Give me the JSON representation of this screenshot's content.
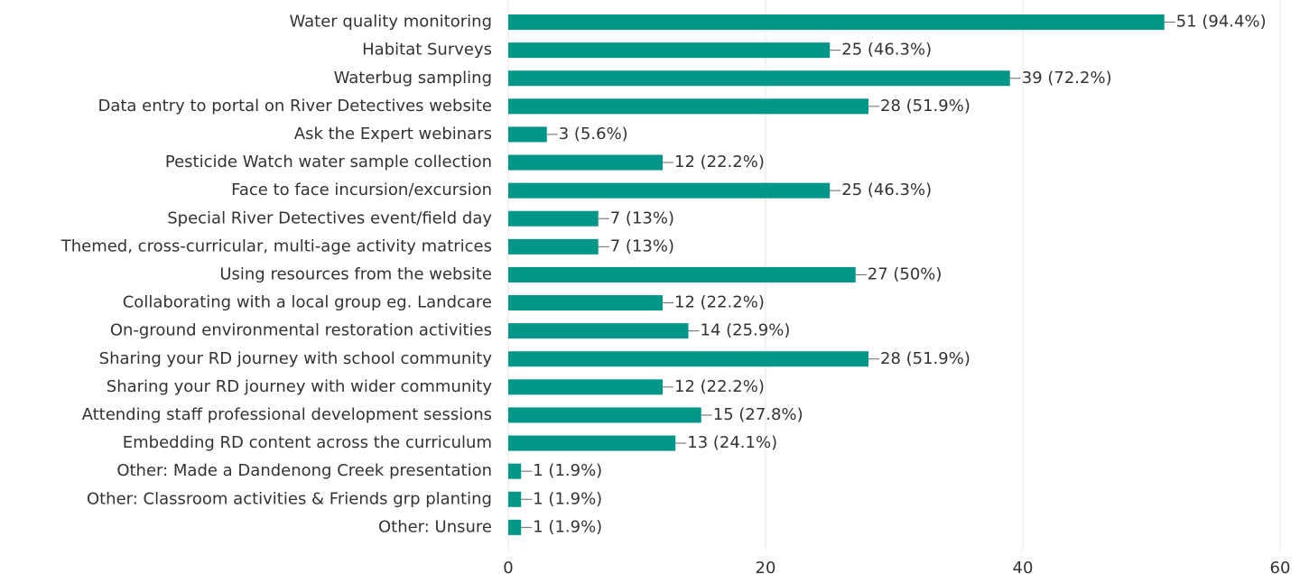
{
  "chart_data": {
    "type": "bar",
    "orientation": "horizontal",
    "categories": [
      "Water quality monitoring",
      "Habitat Surveys",
      "Waterbug sampling",
      "Data entry to portal on River Detectives website",
      "Ask the Expert webinars",
      "Pesticide Watch water sample collection",
      "Face to face incursion/excursion",
      "Special River Detectives event/field day",
      "Themed, cross-curricular, multi-age activity matrices",
      "Using resources from the website",
      "Collaborating with a local group eg. Landcare",
      "On-ground environmental restoration activities",
      "Sharing your RD journey with school community",
      "Sharing your RD journey with wider community",
      "Attending staff professional development sessions",
      "Embedding RD content across the curriculum",
      "Other: Made a Dandenong Creek presentation",
      "Other: Classroom activities & Friends grp planting",
      "Other: Unsure"
    ],
    "values": [
      51,
      25,
      39,
      28,
      3,
      12,
      25,
      7,
      7,
      27,
      12,
      14,
      28,
      12,
      15,
      13,
      1,
      1,
      1
    ],
    "value_labels": [
      "51 (94.4%)",
      "25 (46.3%)",
      "39 (72.2%)",
      "28 (51.9%)",
      "3 (5.6%)",
      "12 (22.2%)",
      "25 (46.3%)",
      "7 (13%)",
      "7 (13%)",
      "27 (50%)",
      "12 (22.2%)",
      "14 (25.9%)",
      "28 (51.9%)",
      "12 (22.2%)",
      "15 (27.8%)",
      "13 (24.1%)",
      "1 (1.9%)",
      "1 (1.9%)",
      "1 (1.9%)"
    ],
    "color": "#009688",
    "xlim": [
      0,
      60
    ],
    "xticks": [
      0,
      20,
      40,
      60
    ],
    "grid": true
  }
}
